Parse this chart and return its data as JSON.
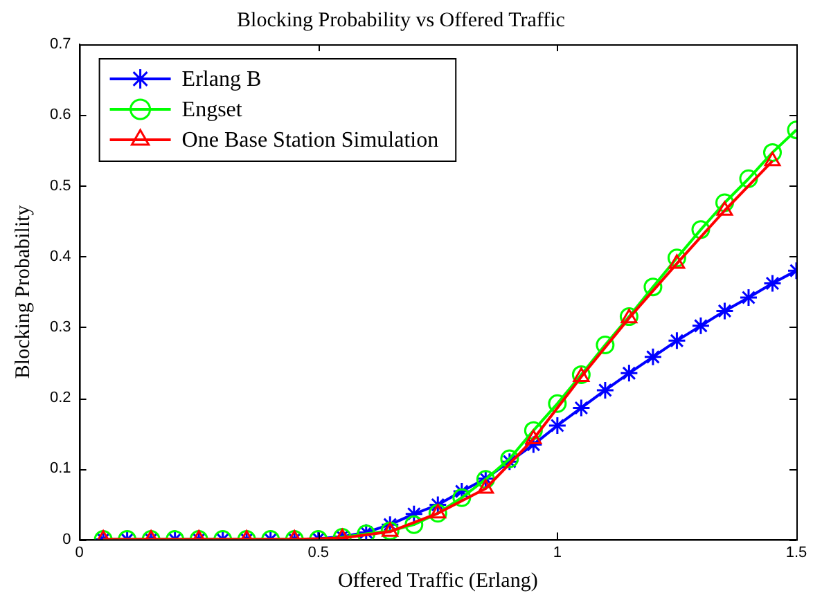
{
  "chart_data": {
    "type": "line",
    "title": "Blocking Probability vs Offered Traffic",
    "xlabel": "Offered Traffic (Erlang)",
    "ylabel": "Blocking Probability",
    "xlim": [
      0,
      1.5
    ],
    "xticks": [
      0,
      0.5,
      1,
      1.5
    ],
    "ylim": [
      0,
      0.7
    ],
    "yticks": [
      0,
      0.1,
      0.2,
      0.3,
      0.4,
      0.5,
      0.6,
      0.7
    ],
    "grid": false,
    "legend": "top left",
    "line_style": "solid",
    "series": [
      {
        "name": "Erlang B",
        "color": "#0000ff",
        "marker": "cross",
        "x": [
          0.05,
          0.1,
          0.15,
          0.2,
          0.25,
          0.3,
          0.35,
          0.4,
          0.45,
          0.5,
          0.55,
          0.6,
          0.65,
          0.7,
          0.75,
          0.8,
          0.85,
          0.9,
          0.95,
          1.0,
          1.05,
          1.1,
          1.15,
          1.2,
          1.25,
          1.3,
          1.35,
          1.4,
          1.45,
          1.5
        ],
        "values": [
          0,
          0,
          0,
          0,
          0,
          0,
          0,
          0,
          0,
          0.001,
          0.004,
          0.01,
          0.021,
          0.036,
          0.049,
          0.068,
          0.086,
          0.11,
          0.134,
          0.161,
          0.186,
          0.211,
          0.235,
          0.258,
          0.281,
          0.302,
          0.323,
          0.342,
          0.362,
          0.38
        ]
      },
      {
        "name": "Engset",
        "color": "#00ff00",
        "marker": "circle",
        "x": [
          0.05,
          0.1,
          0.15,
          0.2,
          0.25,
          0.3,
          0.35,
          0.4,
          0.45,
          0.5,
          0.55,
          0.6,
          0.65,
          0.7,
          0.75,
          0.8,
          0.85,
          0.9,
          0.95,
          1.0,
          1.05,
          1.1,
          1.15,
          1.2,
          1.25,
          1.3,
          1.35,
          1.4,
          1.45,
          1.5
        ],
        "values": [
          0,
          0,
          0,
          0,
          0,
          0,
          0,
          0,
          0,
          0,
          0.003,
          0.008,
          0.012,
          0.021,
          0.037,
          0.059,
          0.085,
          0.114,
          0.154,
          0.192,
          0.233,
          0.275,
          0.315,
          0.357,
          0.398,
          0.438,
          0.476,
          0.51,
          0.547,
          0.579
        ]
      },
      {
        "name": "One Base Station Simulation",
        "color": "#ff0000",
        "marker": "triangle",
        "x": [
          0.05,
          0.15,
          0.25,
          0.35,
          0.45,
          0.55,
          0.65,
          0.75,
          0.85,
          0.95,
          1.05,
          1.15,
          1.25,
          1.35,
          1.45
        ],
        "values": [
          0,
          0,
          0,
          0,
          0,
          0.002,
          0.011,
          0.037,
          0.072,
          0.142,
          0.23,
          0.313,
          0.39,
          0.465,
          0.535
        ]
      }
    ]
  }
}
